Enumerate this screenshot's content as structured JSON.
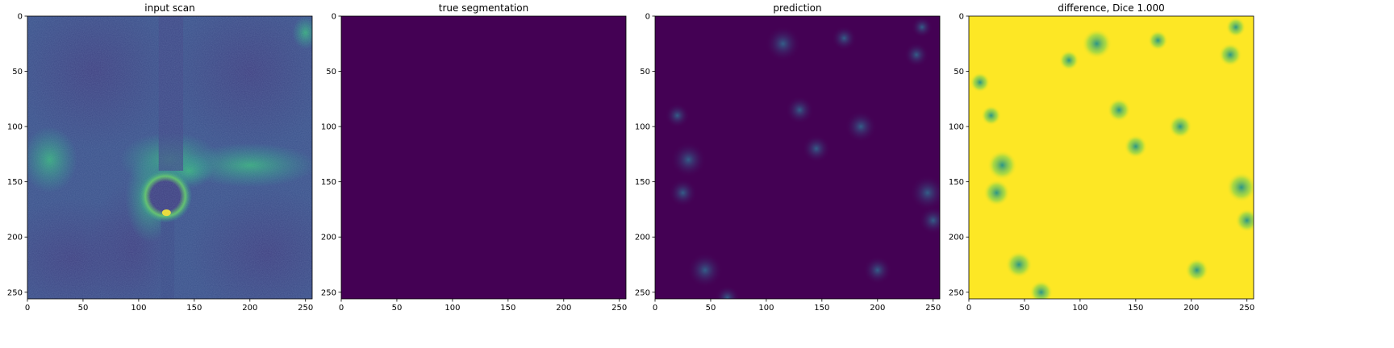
{
  "chart_data": [
    {
      "type": "heatmap",
      "title": "input scan",
      "xlabel": "",
      "ylabel": "",
      "xlim": [
        0,
        256
      ],
      "ylim": [
        256,
        0
      ],
      "x_ticks": [
        0,
        50,
        100,
        150,
        200,
        250
      ],
      "y_ticks": [
        0,
        50,
        100,
        150,
        200,
        250
      ],
      "colormap": "viridis",
      "grid": false,
      "content": "grayscale MRI-like scan"
    },
    {
      "type": "heatmap",
      "title": "true segmentation",
      "xlabel": "",
      "ylabel": "",
      "xlim": [
        0,
        256
      ],
      "ylim": [
        256,
        0
      ],
      "x_ticks": [
        0,
        50,
        100,
        150,
        200,
        250
      ],
      "y_ticks": [
        0,
        50,
        100,
        150,
        200,
        250
      ],
      "colormap": "viridis",
      "grid": false,
      "content": "uniform zero mask",
      "fill_color": "#440154"
    },
    {
      "type": "heatmap",
      "title": "prediction",
      "xlabel": "",
      "ylabel": "",
      "xlim": [
        0,
        256
      ],
      "ylim": [
        256,
        0
      ],
      "x_ticks": [
        0,
        50,
        100,
        150,
        200,
        250
      ],
      "y_ticks": [
        0,
        50,
        100,
        150,
        200,
        250
      ],
      "colormap": "viridis",
      "grid": false,
      "content": "faint sparse activations"
    },
    {
      "type": "heatmap",
      "title": "difference, Dice 1.000",
      "xlabel": "",
      "ylabel": "",
      "xlim": [
        0,
        256
      ],
      "ylim": [
        256,
        0
      ],
      "x_ticks": [
        0,
        50,
        100,
        150,
        200,
        250
      ],
      "y_ticks": [
        0,
        50,
        100,
        150,
        200,
        250
      ],
      "colormap": "viridis",
      "grid": false,
      "content": "mostly high values with sparse low spots",
      "fill_color": "#fde725"
    }
  ]
}
